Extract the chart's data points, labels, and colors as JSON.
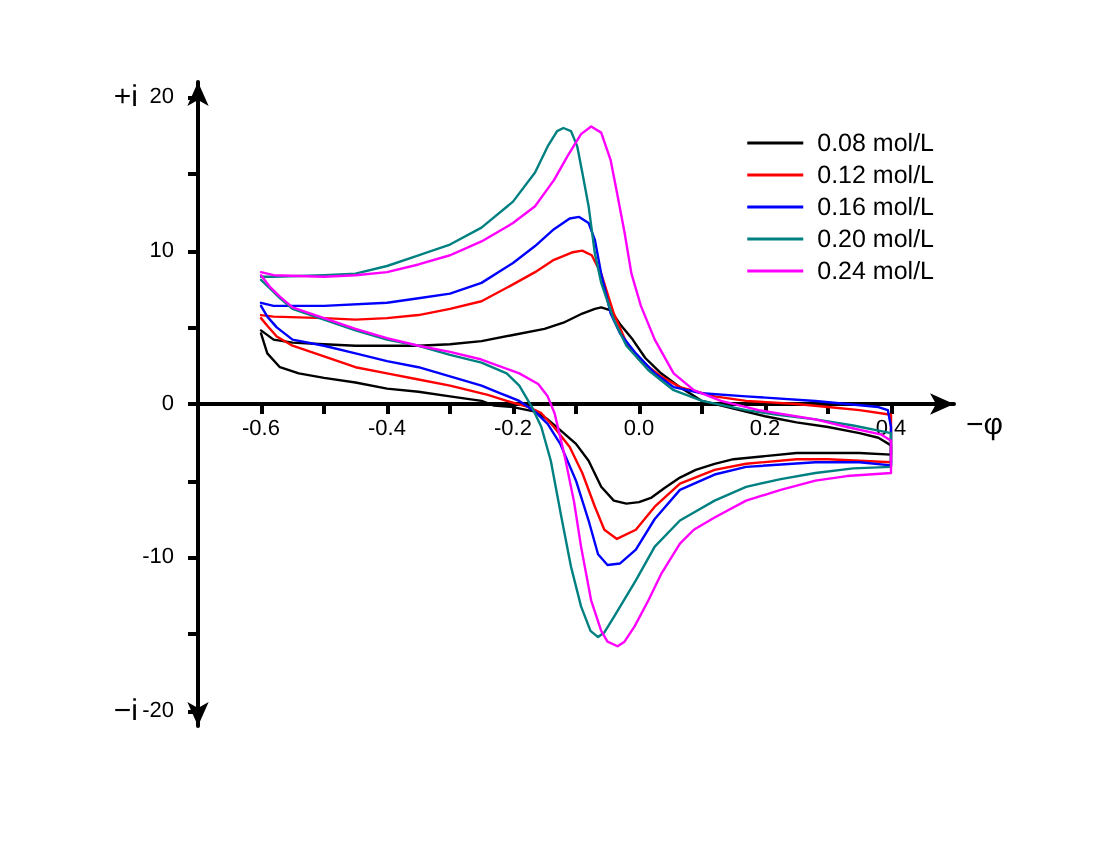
{
  "chart_data": {
    "type": "line",
    "xlabel": "−φ",
    "ylabel": "+i",
    "annotations": [
      "−i"
    ],
    "xlim": [
      -0.7,
      0.5
    ],
    "ylim": [
      -21,
      21
    ],
    "xticks": [
      -0.6,
      {
        "value": -0.5,
        "label": null
      },
      -0.4,
      {
        "value": -0.3,
        "label": null
      },
      -0.2,
      {
        "value": -0.1,
        "label": null
      },
      {
        "value": 0,
        "label": "0.0"
      },
      {
        "value": 0.1,
        "label": null
      },
      0.2,
      {
        "value": 0.3,
        "label": null
      },
      0.4
    ],
    "yticks": [
      -20,
      {
        "value": -15,
        "label": null
      },
      -10,
      {
        "value": -5,
        "label": null
      },
      0,
      {
        "value": 5,
        "label": null
      },
      10,
      {
        "value": 15,
        "label": null
      },
      20
    ],
    "grid": false,
    "legend": "top right",
    "marker": "none",
    "series": [
      {
        "name": "0.08 mol/L",
        "color": "#000000",
        "x": [
          -0.6,
          -0.58,
          -0.55,
          -0.5,
          -0.45,
          -0.4,
          -0.35,
          -0.3,
          -0.25,
          -0.2,
          -0.15,
          -0.12,
          -0.09,
          -0.07,
          -0.06,
          -0.045,
          -0.03,
          -0.01,
          0.01,
          0.035,
          0.065,
          0.1,
          0.15,
          0.2,
          0.25,
          0.3,
          0.35,
          0.38,
          0.4,
          0.4,
          0.35,
          0.3,
          0.25,
          0.2,
          0.15,
          0.12,
          0.09,
          0.065,
          0.04,
          0.02,
          0,
          -0.02,
          -0.04,
          -0.06,
          -0.08,
          -0.1,
          -0.125,
          -0.145,
          -0.165,
          -0.2,
          -0.23,
          -0.25,
          -0.3,
          -0.35,
          -0.4,
          -0.45,
          -0.5,
          -0.54,
          -0.57,
          -0.59,
          -0.6
        ],
        "values": [
          4.8,
          4.2,
          4.0,
          3.9,
          3.8,
          3.8,
          3.8,
          3.9,
          4.1,
          4.5,
          4.9,
          5.3,
          5.9,
          6.2,
          6.3,
          6.1,
          5.2,
          4.2,
          3.0,
          2.0,
          1.1,
          0.2,
          -0.3,
          -0.8,
          -1.2,
          -1.5,
          -1.9,
          -2.2,
          -2.7,
          -3.3,
          -3.2,
          -3.2,
          -3.2,
          -3.4,
          -3.6,
          -3.9,
          -4.3,
          -4.8,
          -5.5,
          -6.1,
          -6.4,
          -6.5,
          -6.3,
          -5.4,
          -3.7,
          -2.6,
          -1.7,
          -1.0,
          -0.5,
          -0.2,
          -0.1,
          0.2,
          0.5,
          0.8,
          1.0,
          1.4,
          1.7,
          2.0,
          2.4,
          3.3,
          4.6
        ]
      },
      {
        "name": "0.12 mol/L",
        "color": "#ff0000",
        "x": [
          -0.6,
          -0.58,
          -0.5,
          -0.45,
          -0.4,
          -0.35,
          -0.3,
          -0.25,
          -0.2,
          -0.165,
          -0.135,
          -0.105,
          -0.09,
          -0.075,
          -0.06,
          -0.04,
          -0.02,
          0,
          0.035,
          0.065,
          0.12,
          0.17,
          0.25,
          0.3,
          0.35,
          0.4,
          0.4,
          0.3,
          0.25,
          0.17,
          0.12,
          0.065,
          0.025,
          -0.005,
          -0.035,
          -0.055,
          -0.07,
          -0.09,
          -0.11,
          -0.135,
          -0.155,
          -0.175,
          -0.21,
          -0.24,
          -0.3,
          -0.35,
          -0.4,
          -0.45,
          -0.5,
          -0.55,
          -0.575,
          -0.59,
          -0.6
        ],
        "values": [
          5.8,
          5.7,
          5.6,
          5.5,
          5.6,
          5.8,
          6.2,
          6.7,
          7.8,
          8.6,
          9.4,
          9.9,
          10.0,
          9.7,
          8.5,
          5.9,
          4.0,
          2.9,
          1.8,
          1.1,
          0.5,
          0.2,
          0.0,
          -0.2,
          -0.4,
          -0.7,
          -3.8,
          -3.6,
          -3.6,
          -3.9,
          -4.3,
          -5.2,
          -6.7,
          -8.2,
          -8.8,
          -8.2,
          -6.7,
          -4.5,
          -2.8,
          -1.5,
          -0.6,
          -0.2,
          0.2,
          0.6,
          1.2,
          1.6,
          2.0,
          2.4,
          3.1,
          3.8,
          4.4,
          5.1,
          5.6
        ]
      },
      {
        "name": "0.16 mol/L",
        "color": "#0000ff",
        "x": [
          -0.6,
          -0.58,
          -0.5,
          -0.4,
          -0.35,
          -0.3,
          -0.25,
          -0.2,
          -0.165,
          -0.135,
          -0.11,
          -0.095,
          -0.08,
          -0.07,
          -0.06,
          -0.045,
          -0.03,
          -0.005,
          0.025,
          0.055,
          0.1,
          0.17,
          0.28,
          0.38,
          0.395,
          0.4,
          0.4,
          0.35,
          0.28,
          0.17,
          0.12,
          0.065,
          0.025,
          -0.005,
          -0.03,
          -0.05,
          -0.065,
          -0.08,
          -0.1,
          -0.125,
          -0.145,
          -0.165,
          -0.19,
          -0.22,
          -0.25,
          -0.3,
          -0.35,
          -0.4,
          -0.45,
          -0.5,
          -0.55,
          -0.575,
          -0.59,
          -0.6
        ],
        "values": [
          6.6,
          6.4,
          6.4,
          6.6,
          6.9,
          7.2,
          7.9,
          9.2,
          10.3,
          11.4,
          12.1,
          12.2,
          11.8,
          10.7,
          8.5,
          5.9,
          4.6,
          3.3,
          2.0,
          1.1,
          0.7,
          0.5,
          0.2,
          -0.2,
          -0.4,
          -1.5,
          -4.0,
          -3.8,
          -3.8,
          -4.1,
          -4.6,
          -5.6,
          -7.5,
          -9.5,
          -10.4,
          -10.5,
          -9.8,
          -7.6,
          -5.0,
          -2.6,
          -1.3,
          -0.5,
          0.2,
          0.7,
          1.2,
          1.8,
          2.4,
          2.8,
          3.3,
          3.8,
          4.2,
          5.0,
          5.7,
          6.4
        ]
      },
      {
        "name": "0.20 mol/L",
        "color": "#008080",
        "x": [
          -0.6,
          -0.58,
          -0.5,
          -0.45,
          -0.4,
          -0.35,
          -0.3,
          -0.25,
          -0.2,
          -0.165,
          -0.145,
          -0.13,
          -0.12,
          -0.108,
          -0.098,
          -0.09,
          -0.08,
          -0.07,
          -0.06,
          -0.04,
          -0.02,
          0.015,
          0.055,
          0.1,
          0.17,
          0.22,
          0.28,
          0.34,
          0.4,
          0.4,
          0.34,
          0.28,
          0.225,
          0.17,
          0.12,
          0.065,
          0.025,
          -0.005,
          -0.04,
          -0.055,
          -0.065,
          -0.077,
          -0.092,
          -0.108,
          -0.124,
          -0.14,
          -0.155,
          -0.17,
          -0.19,
          -0.21,
          -0.25,
          -0.3,
          -0.35,
          -0.4,
          -0.45,
          -0.5,
          -0.55,
          -0.57,
          -0.585,
          -0.6
        ],
        "values": [
          8.3,
          8.3,
          8.4,
          8.5,
          9.0,
          9.7,
          10.4,
          11.5,
          13.2,
          15.1,
          16.8,
          17.8,
          18.0,
          17.8,
          16.8,
          15.1,
          12.9,
          9.8,
          7.9,
          5.5,
          3.8,
          2.2,
          0.9,
          0.2,
          -0.4,
          -0.7,
          -1.0,
          -1.4,
          -1.9,
          -4.1,
          -4.2,
          -4.5,
          -4.9,
          -5.4,
          -6.3,
          -7.6,
          -9.3,
          -11.5,
          -13.9,
          -14.9,
          -15.2,
          -14.8,
          -13.2,
          -10.6,
          -7.2,
          -3.7,
          -1.5,
          -0.2,
          1.2,
          2.0,
          2.7,
          3.2,
          3.8,
          4.2,
          4.8,
          5.5,
          6.2,
          6.9,
          7.5,
          8.1
        ]
      },
      {
        "name": "0.24 mol/L",
        "color": "#ff00ff",
        "x": [
          -0.6,
          -0.58,
          -0.5,
          -0.45,
          -0.4,
          -0.35,
          -0.3,
          -0.25,
          -0.2,
          -0.165,
          -0.135,
          -0.113,
          -0.092,
          -0.076,
          -0.06,
          -0.045,
          -0.035,
          -0.023,
          -0.012,
          0.003,
          0.025,
          0.055,
          0.087,
          0.13,
          0.19,
          0.28,
          0.33,
          0.385,
          0.4,
          0.4,
          0.33,
          0.28,
          0.225,
          0.17,
          0.12,
          0.087,
          0.065,
          0.035,
          0.015,
          -0.007,
          -0.023,
          -0.034,
          -0.05,
          -0.06,
          -0.076,
          -0.092,
          -0.103,
          -0.118,
          -0.134,
          -0.145,
          -0.16,
          -0.19,
          -0.25,
          -0.3,
          -0.35,
          -0.4,
          -0.45,
          -0.5,
          -0.55,
          -0.57,
          -0.585,
          -0.6
        ],
        "values": [
          8.6,
          8.4,
          8.3,
          8.4,
          8.6,
          9.1,
          9.7,
          10.6,
          11.8,
          12.9,
          14.6,
          16.2,
          17.6,
          18.1,
          17.7,
          15.9,
          13.8,
          11.2,
          8.5,
          6.4,
          4.2,
          2.0,
          0.9,
          0.2,
          -0.4,
          -1.0,
          -1.5,
          -2.0,
          -2.4,
          -4.5,
          -4.7,
          -5.0,
          -5.6,
          -6.3,
          -7.4,
          -8.2,
          -9.1,
          -11.1,
          -12.8,
          -14.5,
          -15.5,
          -15.8,
          -15.5,
          -14.8,
          -12.8,
          -9.3,
          -6.4,
          -3.4,
          -0.6,
          0.5,
          1.3,
          2.0,
          2.9,
          3.4,
          3.8,
          4.3,
          4.9,
          5.6,
          6.3,
          7.0,
          7.6,
          8.4
        ]
      }
    ]
  }
}
